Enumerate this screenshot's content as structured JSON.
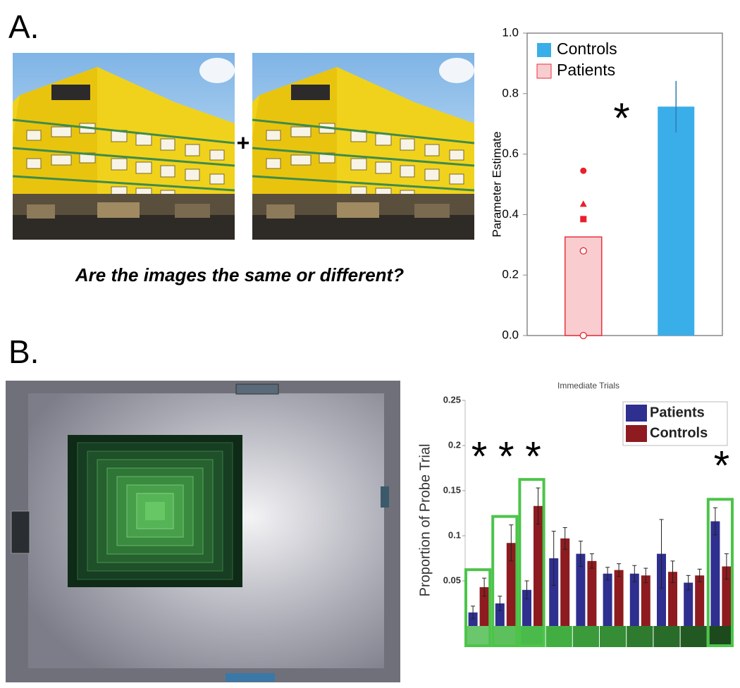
{
  "labels": {
    "panel_a": "A.",
    "panel_b": "B."
  },
  "question": "Are the images the same or different?",
  "plus": "+",
  "chart_data": [
    {
      "type": "bar",
      "y_label": "Parameter Estimate",
      "categories": [
        null,
        null
      ],
      "series": [
        {
          "name": "Controls",
          "color": "#3aaee8",
          "values": [
            null,
            0.757
          ],
          "errors": [
            null,
            0.085
          ]
        },
        {
          "name": "Patients",
          "color": "#f9cdd0",
          "edge": "#e8323c",
          "values": [
            0.326,
            null
          ],
          "errors": [
            null,
            null
          ]
        }
      ],
      "points": {
        "color": "#e8202a",
        "values": [
          0.545,
          0.435,
          0.385,
          0.28,
          0.0
        ],
        "markers": [
          "circle",
          "triangle",
          "square",
          "open-circle",
          "open-circle"
        ]
      },
      "annotation": "*",
      "ylim": [
        0,
        1
      ],
      "yticks": [
        {
          "value": 0,
          "label": "0.0"
        },
        0.2,
        0.4,
        0.6,
        0.8,
        {
          "value": 1,
          "label": "1.0"
        }
      ],
      "legend": "upper left"
    },
    {
      "type": "bar",
      "title": "Immediate Trials",
      "y_label": "Proportion of Probe Trial",
      "categories": [
        null,
        null,
        null,
        null,
        null,
        null,
        null,
        null,
        null,
        null
      ],
      "series": [
        {
          "name": "Patients",
          "color": "#2e2f8f",
          "values": [
            0.015,
            0.025,
            0.04,
            0.075,
            0.08,
            0.058,
            0.058,
            0.08,
            0.048,
            0.116
          ],
          "errors": [
            0.007,
            0.008,
            0.01,
            0.03,
            0.014,
            0.007,
            0.009,
            0.038,
            0.008,
            0.015
          ]
        },
        {
          "name": "Controls",
          "color": "#8e1b1f",
          "values": [
            0.043,
            0.092,
            0.133,
            0.097,
            0.072,
            0.062,
            0.056,
            0.06,
            0.056,
            0.066
          ],
          "errors": [
            0.01,
            0.02,
            0.02,
            0.012,
            0.008,
            0.007,
            0.008,
            0.012,
            0.007,
            0.014
          ]
        }
      ],
      "significant": [
        true,
        true,
        true,
        false,
        false,
        false,
        false,
        false,
        false,
        true
      ],
      "significance_marker": "*",
      "highlight_color": "#4cc44a",
      "ylim": [
        0,
        0.25
      ],
      "yticks": [
        0.05,
        0.1,
        0.15,
        0.2,
        0.25
      ],
      "legend": "upper right"
    }
  ]
}
